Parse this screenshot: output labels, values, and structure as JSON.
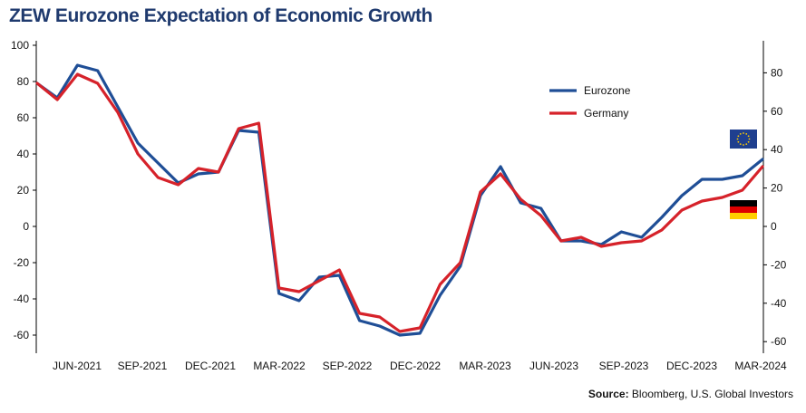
{
  "title": "ZEW Eurozone Expectation of Economic Growth",
  "source_label": "Source:",
  "source_text": " Bloomberg, U.S. Global Investors",
  "chart_data": {
    "type": "line",
    "title": "ZEW Eurozone Expectation of Economic Growth",
    "x_ticks": [
      "JUN-2021",
      "SEP-2021",
      "DEC-2021",
      "MAR-2022",
      "SEP-2022",
      "DEC-2022",
      "MAR-2023",
      "JUN-2023",
      "SEP-2023",
      "DEC-2023",
      "MAR-2024"
    ],
    "y_left": {
      "range": [
        -70,
        100
      ],
      "ticks": [
        -60,
        -40,
        -20,
        0,
        20,
        40,
        60,
        80,
        100
      ]
    },
    "y_right": {
      "range": [
        -62,
        93
      ],
      "ticks": [
        -60,
        -40,
        -20,
        0,
        20,
        40,
        60,
        80
      ]
    },
    "grid": false,
    "legend_position": "top-right",
    "x": [
      "Mar 2021",
      "Apr 2021",
      "May 2021",
      "Jun 2021",
      "Jul 2021",
      "Aug 2021",
      "Sep 2021",
      "Oct 2021",
      "Nov 2021",
      "Dec 2021",
      "Jan 2022",
      "Feb 2022",
      "Mar 2022",
      "Apr 2022",
      "May 2022",
      "Jun 2022",
      "Jul 2022",
      "Aug 2022",
      "Sep 2022",
      "Oct 2022",
      "Nov 2022",
      "Dec 2022",
      "Jan 2023",
      "Feb 2023",
      "Mar 2023",
      "Apr 2023",
      "May 2023",
      "Jun 2023",
      "Jul 2023",
      "Aug 2023",
      "Sep 2023",
      "Oct 2023",
      "Nov 2023",
      "Dec 2023",
      "Jan 2024",
      "Feb 2024",
      "Mar 2024"
    ],
    "series": [
      {
        "name": "Eurozone",
        "color": "#1f4e96",
        "axis": "left",
        "values": [
          79,
          71,
          89,
          86,
          66,
          46,
          35,
          24,
          29,
          30,
          53,
          52,
          -37,
          -41,
          -28,
          -27,
          -52,
          -55,
          -60,
          -59,
          -38,
          -22,
          17,
          33,
          13,
          10,
          -8,
          -8,
          -10,
          -3,
          -6,
          5,
          17,
          26,
          26,
          28,
          37
        ]
      },
      {
        "name": "Germany",
        "color": "#d6222a",
        "axis": "left",
        "values": [
          79,
          70,
          84,
          79,
          63,
          40,
          27,
          23,
          32,
          30,
          54,
          57,
          -34,
          -36,
          -30,
          -24,
          -48,
          -50,
          -58,
          -56,
          -32,
          -20,
          19,
          29,
          15,
          6,
          -8,
          -6,
          -11,
          -9,
          -8,
          -2,
          9,
          14,
          16,
          20,
          33
        ]
      }
    ]
  },
  "legend": [
    {
      "label": "Eurozone",
      "color": "#1f4e96"
    },
    {
      "label": "Germany",
      "color": "#d6222a"
    }
  ],
  "flags": [
    {
      "icon": "eu-flag-icon",
      "colors": [
        "#1f3f8f",
        "#ffcc00"
      ]
    },
    {
      "icon": "germany-flag-icon",
      "colors": [
        "#000000",
        "#dd0000",
        "#ffce00"
      ]
    }
  ]
}
